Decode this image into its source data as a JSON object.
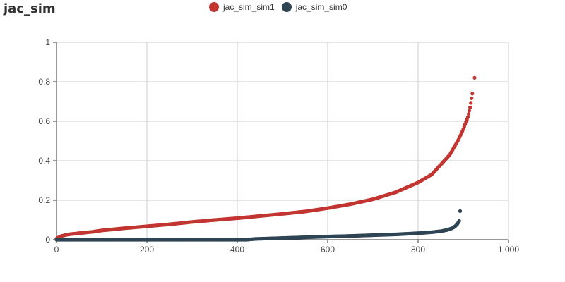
{
  "chart_data": {
    "type": "scatter",
    "title": "jac_sim",
    "xlabel": "",
    "ylabel": "",
    "xlim": [
      0,
      1000
    ],
    "ylim": [
      0,
      1
    ],
    "x_ticks": [
      0,
      200,
      400,
      600,
      800,
      1000
    ],
    "x_tick_labels": [
      "0",
      "200",
      "400",
      "600",
      "800",
      "1,000"
    ],
    "y_ticks": [
      0,
      0.2,
      0.4,
      0.6,
      0.8,
      1
    ],
    "y_tick_labels": [
      "0",
      "0.2",
      "0.4",
      "0.6",
      "0.8",
      "1"
    ],
    "grid": true,
    "legend_position": "top-center",
    "series": [
      {
        "name": "jac_sim_sim1",
        "color": "#c23531",
        "points": [
          [
            0,
            0.005
          ],
          [
            5,
            0.012
          ],
          [
            10,
            0.018
          ],
          [
            20,
            0.024
          ],
          [
            30,
            0.028
          ],
          [
            50,
            0.033
          ],
          [
            80,
            0.04
          ],
          [
            100,
            0.047
          ],
          [
            150,
            0.058
          ],
          [
            200,
            0.068
          ],
          [
            250,
            0.078
          ],
          [
            300,
            0.09
          ],
          [
            350,
            0.1
          ],
          [
            400,
            0.109
          ],
          [
            450,
            0.12
          ],
          [
            500,
            0.131
          ],
          [
            550,
            0.143
          ],
          [
            600,
            0.16
          ],
          [
            650,
            0.18
          ],
          [
            700,
            0.205
          ],
          [
            750,
            0.24
          ],
          [
            800,
            0.29
          ],
          [
            830,
            0.33
          ],
          [
            850,
            0.38
          ],
          [
            870,
            0.43
          ],
          [
            890,
            0.51
          ],
          [
            900,
            0.56
          ],
          [
            910,
            0.62
          ],
          [
            915,
            0.67
          ],
          [
            920,
            0.74
          ],
          [
            925,
            0.82
          ]
        ]
      },
      {
        "name": "jac_sim_sim0",
        "color": "#2f4554",
        "points": [
          [
            0,
            0.0
          ],
          [
            100,
            0.0
          ],
          [
            200,
            0.0
          ],
          [
            300,
            0.0
          ],
          [
            400,
            0.0
          ],
          [
            420,
            0.0
          ],
          [
            440,
            0.004
          ],
          [
            480,
            0.007
          ],
          [
            520,
            0.01
          ],
          [
            560,
            0.013
          ],
          [
            600,
            0.016
          ],
          [
            650,
            0.019
          ],
          [
            700,
            0.023
          ],
          [
            750,
            0.027
          ],
          [
            800,
            0.033
          ],
          [
            830,
            0.038
          ],
          [
            850,
            0.043
          ],
          [
            865,
            0.05
          ],
          [
            875,
            0.058
          ],
          [
            882,
            0.068
          ],
          [
            887,
            0.08
          ],
          [
            891,
            0.095
          ],
          [
            893,
            0.145
          ]
        ]
      }
    ]
  }
}
